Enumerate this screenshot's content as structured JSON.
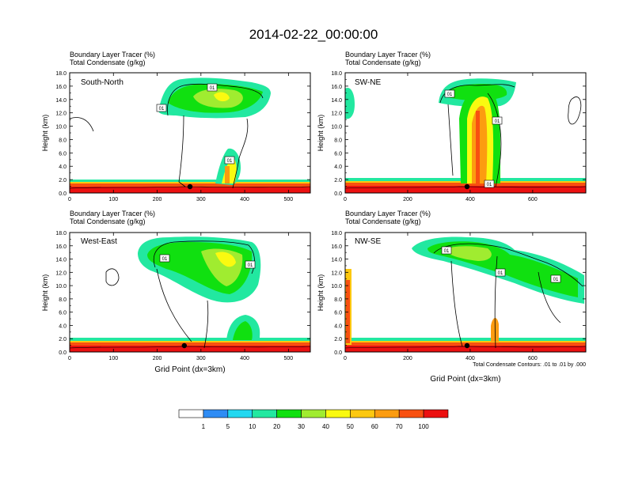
{
  "figure": {
    "title": "2014-02-22_00:00:00",
    "contour_note": "Total Condensate Contours: .01 to .01 by .000",
    "colorbar": {
      "labels": [
        "1",
        "5",
        "10",
        "20",
        "30",
        "40",
        "50",
        "60",
        "70",
        "100"
      ],
      "colors": [
        "#ffffff",
        "#2f8cf4",
        "#22d8f0",
        "#22e8a0",
        "#10e010",
        "#a0ec30",
        "#fafa10",
        "#fcc810",
        "#fc9c10",
        "#f85010",
        "#ec1010"
      ]
    }
  },
  "chart_data": [
    {
      "type": "heatmap",
      "panel_label": "South-North",
      "title_line1": "Boundary Layer Tracer    (%)",
      "title_line2": "Total Condensate    (g/kg)",
      "xlabel": "",
      "ylabel": "Height (km)",
      "xlim": [
        0,
        550
      ],
      "ylim": [
        0,
        18
      ],
      "x_ticks": [
        0,
        100,
        200,
        300,
        400,
        500
      ],
      "y_ticks": [
        "0.0",
        "2.0",
        "4.0",
        "6.0",
        "8.0",
        "10.0",
        "12.0",
        "14.0",
        "16.0",
        "18.0"
      ],
      "marker_x": 275,
      "contour_labels": [
        "01",
        "01",
        "01"
      ]
    },
    {
      "type": "heatmap",
      "panel_label": "SW-NE",
      "title_line1": "Boundary Layer Tracer    (%)",
      "title_line2": "Total Condensate    (g/kg)",
      "xlabel": "",
      "ylabel": "Height (km)",
      "xlim": [
        0,
        770
      ],
      "ylim": [
        0,
        18
      ],
      "x_ticks": [
        0,
        200,
        400,
        600
      ],
      "y_ticks": [
        "0.0",
        "2.0",
        "4.0",
        "6.0",
        "8.0",
        "10.0",
        "12.0",
        "14.0",
        "16.0",
        "18.0"
      ],
      "marker_x": 390,
      "contour_labels": [
        "01",
        "01",
        "01"
      ]
    },
    {
      "type": "heatmap",
      "panel_label": "West-East",
      "title_line1": "Boundary Layer Tracer    (%)",
      "title_line2": "Total Condensate    (g/kg)",
      "xlabel": "Grid Point (dx=3km)",
      "ylabel": "Height (km)",
      "xlim": [
        0,
        550
      ],
      "ylim": [
        0,
        18
      ],
      "x_ticks": [
        0,
        100,
        200,
        300,
        400,
        500
      ],
      "y_ticks": [
        "0.0",
        "2.0",
        "4.0",
        "6.0",
        "8.0",
        "10.0",
        "12.0",
        "14.0",
        "16.0",
        "18.0"
      ],
      "marker_x": 262,
      "contour_labels": [
        "01",
        "01"
      ]
    },
    {
      "type": "heatmap",
      "panel_label": "NW-SE",
      "title_line1": "Boundary Layer Tracer    (%)",
      "title_line2": "Total Condensate    (g/kg)",
      "xlabel": "Grid Point (dx=3km)",
      "ylabel": "Height (km)",
      "xlim": [
        0,
        770
      ],
      "ylim": [
        0,
        18
      ],
      "x_ticks": [
        0,
        200,
        400,
        600
      ],
      "y_ticks": [
        "0.0",
        "2.0",
        "4.0",
        "6.0",
        "8.0",
        "10.0",
        "12.0",
        "14.0",
        "16.0",
        "18.0"
      ],
      "marker_x": 390,
      "contour_labels": [
        "01",
        "01",
        "01"
      ]
    }
  ]
}
